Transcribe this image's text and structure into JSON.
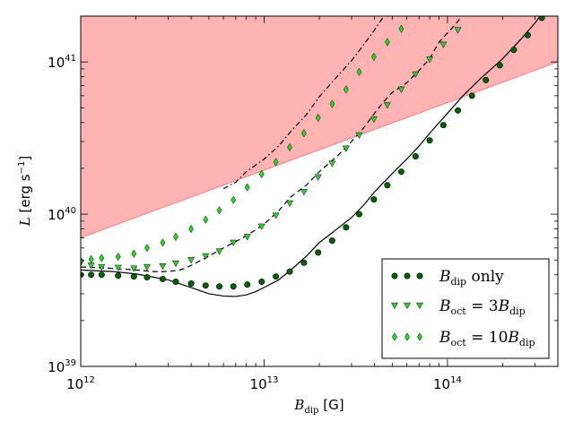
{
  "chart_data": {
    "type": "scatter",
    "xscale": "log",
    "yscale": "log",
    "xlim": [
      1000000000000.0,
      400000000000000.0
    ],
    "ylim": [
      1e+39,
      2e+41
    ],
    "x_ticks": [
      {
        "value": 1000000000000.0,
        "base": "10",
        "exp": "12"
      },
      {
        "value": 10000000000000.0,
        "base": "10",
        "exp": "13"
      },
      {
        "value": 100000000000000.0,
        "base": "10",
        "exp": "14"
      }
    ],
    "y_ticks": [
      {
        "value": 1e+39,
        "base": "10",
        "exp": "39"
      },
      {
        "value": 1e+40,
        "base": "10",
        "exp": "40"
      },
      {
        "value": 1e+41,
        "base": "10",
        "exp": "41"
      }
    ],
    "xlabel": {
      "main": "B",
      "sub": "dip",
      "rest": " [G]"
    },
    "ylabel": {
      "main": "L",
      "rest": " [erg s",
      "sup": "−1",
      "close": "]"
    },
    "excluded_region": {
      "color": "#ffb3b3",
      "edge_color": "#ff8080",
      "lower_boundary": [
        [
          1000000000000.0,
          7e+39
        ],
        [
          400000000000000.0,
          1e+41
        ]
      ]
    },
    "colors": {
      "dip_marker": "#006400",
      "oct3_marker": "#32cd32",
      "oct10_marker": "#22dd22",
      "marker_edge": "#000000",
      "line": "#000000"
    },
    "series": [
      {
        "name": "B_dip only",
        "legend_main": "B",
        "legend_sub": "dip",
        "legend_rest": " only",
        "marker": "circle",
        "color": "#006400",
        "points": [
          [
            1000000000000.0,
            4e+39
          ],
          [
            1140000000000.0,
            4e+39
          ],
          [
            1300000000000.0,
            4e+39
          ],
          [
            1600000000000.0,
            3.95e+39
          ],
          [
            1950000000000.0,
            3.9e+39
          ],
          [
            2300000000000.0,
            3.85e+39
          ],
          [
            2800000000000.0,
            3.75e+39
          ],
          [
            3300000000000.0,
            3.6e+39
          ],
          [
            4000000000000.0,
            3.5e+39
          ],
          [
            4800000000000.0,
            3.4e+39
          ],
          [
            5700000000000.0,
            3.35e+39
          ],
          [
            6800000000000.0,
            3.35e+39
          ],
          [
            8100000000000.0,
            3.45e+39
          ],
          [
            9700000000000.0,
            3.6e+39
          ],
          [
            11600000000000.0,
            3.9e+39
          ],
          [
            13800000000000.0,
            4.2e+39
          ],
          [
            16500000000000.0,
            4.8e+39
          ],
          [
            19700000000000.0,
            5.6e+39
          ],
          [
            23500000000000.0,
            6.7e+39
          ],
          [
            28000000000000.0,
            8.2e+39
          ],
          [
            33000000000000.0,
            1e+40
          ],
          [
            39700000000000.0,
            1.25e+40
          ],
          [
            47000000000000.0,
            1.55e+40
          ],
          [
            56000000000000.0,
            1.9e+40
          ],
          [
            67000000000000.0,
            2.4e+40
          ],
          [
            80000000000000.0,
            3.05e+40
          ],
          [
            95000000000000.0,
            3.85e+40
          ],
          [
            114000000000000.0,
            4.8e+40
          ],
          [
            136000000000000.0,
            6e+40
          ],
          [
            162000000000000.0,
            7.6e+40
          ],
          [
            193000000000000.0,
            9.5e+40
          ],
          [
            230000000000000.0,
            1.2e+41
          ],
          [
            274000000000000.0,
            1.5e+41
          ],
          [
            327000000000000.0,
            1.95e+41
          ]
        ]
      },
      {
        "name": "B_oct = 3 B_dip",
        "legend_main": "B",
        "legend_sub": "oct",
        "legend_rest": " = 3",
        "legend_main2": "B",
        "legend_sub2": "dip",
        "marker": "triangle-down",
        "color": "#32cd32",
        "points": [
          [
            1000000000000.0,
            4.8e+39
          ],
          [
            1140000000000.0,
            4.6e+39
          ],
          [
            1300000000000.0,
            4.5e+39
          ],
          [
            1600000000000.0,
            4.45e+39
          ],
          [
            1950000000000.0,
            4.4e+39
          ],
          [
            2300000000000.0,
            4.5e+39
          ],
          [
            2800000000000.0,
            4.55e+39
          ],
          [
            3300000000000.0,
            4.75e+39
          ],
          [
            4000000000000.0,
            5e+39
          ],
          [
            4800000000000.0,
            5.3e+39
          ],
          [
            5700000000000.0,
            5.7e+39
          ],
          [
            6800000000000.0,
            6.5e+39
          ],
          [
            8100000000000.0,
            7.1e+39
          ],
          [
            9700000000000.0,
            8.3e+39
          ],
          [
            11600000000000.0,
            9.8e+39
          ],
          [
            13800000000000.0,
            1.18e+40
          ],
          [
            16500000000000.0,
            1.4e+40
          ],
          [
            19700000000000.0,
            1.75e+40
          ],
          [
            23500000000000.0,
            2.15e+40
          ],
          [
            28000000000000.0,
            2.7e+40
          ],
          [
            33000000000000.0,
            3.3e+40
          ],
          [
            39700000000000.0,
            4.2e+40
          ],
          [
            47000000000000.0,
            5.2e+40
          ],
          [
            56000000000000.0,
            6.6e+40
          ],
          [
            67000000000000.0,
            8.3e+40
          ],
          [
            80000000000000.0,
            1.04e+41
          ],
          [
            95000000000000.0,
            1.3e+41
          ],
          [
            114000000000000.0,
            1.62e+41
          ]
        ]
      },
      {
        "name": "B_oct = 10 B_dip",
        "legend_main": "B",
        "legend_sub": "oct",
        "legend_rest": " = 10",
        "legend_main2": "B",
        "legend_sub2": "dip",
        "marker": "diamond",
        "color": "#22dd22",
        "points": [
          [
            1000000000000.0,
            4.95e+39
          ],
          [
            1140000000000.0,
            5.05e+39
          ],
          [
            1300000000000.0,
            5.15e+39
          ],
          [
            1600000000000.0,
            5.25e+39
          ],
          [
            1950000000000.0,
            5.5e+39
          ],
          [
            2300000000000.0,
            6e+39
          ],
          [
            2800000000000.0,
            6.5e+39
          ],
          [
            3300000000000.0,
            7.1e+39
          ],
          [
            4000000000000.0,
            8e+39
          ],
          [
            4800000000000.0,
            9.2e+39
          ],
          [
            5700000000000.0,
            1.06e+40
          ],
          [
            6800000000000.0,
            1.24e+40
          ],
          [
            8100000000000.0,
            1.5e+40
          ],
          [
            9700000000000.0,
            1.83e+40
          ],
          [
            11600000000000.0,
            2.2e+40
          ],
          [
            13800000000000.0,
            2.75e+40
          ],
          [
            16500000000000.0,
            3.4e+40
          ],
          [
            19700000000000.0,
            4.3e+40
          ],
          [
            23500000000000.0,
            5.3e+40
          ],
          [
            28000000000000.0,
            6.6e+40
          ],
          [
            33000000000000.0,
            8.6e+40
          ],
          [
            39700000000000.0,
            1.08e+41
          ],
          [
            47000000000000.0,
            1.35e+41
          ],
          [
            56000000000000.0,
            1.65e+41
          ]
        ]
      }
    ],
    "lines": [
      {
        "name": "solid",
        "style": "solid",
        "points": [
          [
            1000000000000.0,
            4.3e+39
          ],
          [
            1500000000000.0,
            4.2e+39
          ],
          [
            2000000000000.0,
            4.05e+39
          ],
          [
            3000000000000.0,
            3.7e+39
          ],
          [
            4000000000000.0,
            3.3e+39
          ],
          [
            5000000000000.0,
            3e+39
          ],
          [
            6000000000000.0,
            2.9e+39
          ],
          [
            7000000000000.0,
            2.88e+39
          ],
          [
            8000000000000.0,
            2.95e+39
          ],
          [
            9000000000000.0,
            3.1e+39
          ],
          [
            10000000000000.0,
            3.3e+39
          ],
          [
            12000000000000.0,
            3.7e+39
          ],
          [
            14000000000000.0,
            4.3e+39
          ],
          [
            17000000000000.0,
            5.3e+39
          ],
          [
            20000000000000.0,
            6.5e+39
          ],
          [
            25000000000000.0,
            8e+39
          ],
          [
            30000000000000.0,
            9.5e+39
          ],
          [
            35000000000000.0,
            1.15e+40
          ],
          [
            40000000000000.0,
            1.4e+40
          ],
          [
            50000000000000.0,
            1.85e+40
          ],
          [
            60000000000000.0,
            2.3e+40
          ],
          [
            70000000000000.0,
            2.8e+40
          ],
          [
            80000000000000.0,
            3.4e+40
          ],
          [
            100000000000000.0,
            4.6e+40
          ],
          [
            120000000000000.0,
            5.9e+40
          ],
          [
            150000000000000.0,
            7.7e+40
          ],
          [
            200000000000000.0,
            1.05e+41
          ],
          [
            250000000000000.0,
            1.4e+41
          ],
          [
            300000000000000.0,
            1.8e+41
          ],
          [
            320000000000000.0,
            2e+41
          ]
        ]
      },
      {
        "name": "dashed",
        "style": "dashed",
        "points": [
          [
            1000000000000.0,
            4.5e+39
          ],
          [
            1500000000000.0,
            4.4e+39
          ],
          [
            2000000000000.0,
            4.3e+39
          ],
          [
            2500000000000.0,
            4.2e+39
          ],
          [
            3000000000000.0,
            4.2e+39
          ],
          [
            3500000000000.0,
            4.3e+39
          ],
          [
            4000000000000.0,
            4.6e+39
          ],
          [
            5000000000000.0,
            5.3e+39
          ],
          [
            6000000000000.0,
            6e+39
          ],
          [
            7000000000000.0,
            6.6e+39
          ],
          [
            8000000000000.0,
            7.2e+39
          ],
          [
            10000000000000.0,
            8.6e+39
          ],
          [
            12000000000000.0,
            1.05e+40
          ],
          [
            14000000000000.0,
            1.3e+40
          ],
          [
            17000000000000.0,
            1.55e+40
          ],
          [
            20000000000000.0,
            1.9e+40
          ],
          [
            25000000000000.0,
            2.4e+40
          ],
          [
            30000000000000.0,
            3e+40
          ],
          [
            35000000000000.0,
            3.7e+40
          ],
          [
            40000000000000.0,
            4.6e+40
          ],
          [
            45000000000000.0,
            5.5e+40
          ],
          [
            50000000000000.0,
            6.3e+40
          ],
          [
            60000000000000.0,
            7.3e+40
          ],
          [
            70000000000000.0,
            8.8e+40
          ],
          [
            80000000000000.0,
            1.05e+41
          ],
          [
            90000000000000.0,
            1.35e+41
          ],
          [
            100000000000000.0,
            1.55e+41
          ],
          [
            110000000000000.0,
            1.75e+41
          ],
          [
            120000000000000.0,
            2e+41
          ]
        ]
      },
      {
        "name": "dash-dot",
        "style": "dashdot",
        "points": [
          [
            6000000000000.0,
            1.47e+40
          ],
          [
            7000000000000.0,
            1.62e+40
          ],
          [
            8000000000000.0,
            1.9e+40
          ],
          [
            10000000000000.0,
            2.3e+40
          ],
          [
            12000000000000.0,
            2.8e+40
          ],
          [
            14000000000000.0,
            3.5e+40
          ],
          [
            17000000000000.0,
            4.5e+40
          ],
          [
            20000000000000.0,
            5.9e+40
          ],
          [
            25000000000000.0,
            8e+40
          ],
          [
            30000000000000.0,
            1.02e+41
          ],
          [
            35000000000000.0,
            1.3e+41
          ],
          [
            40000000000000.0,
            1.62e+41
          ],
          [
            45000000000000.0,
            2e+41
          ]
        ]
      }
    ]
  }
}
